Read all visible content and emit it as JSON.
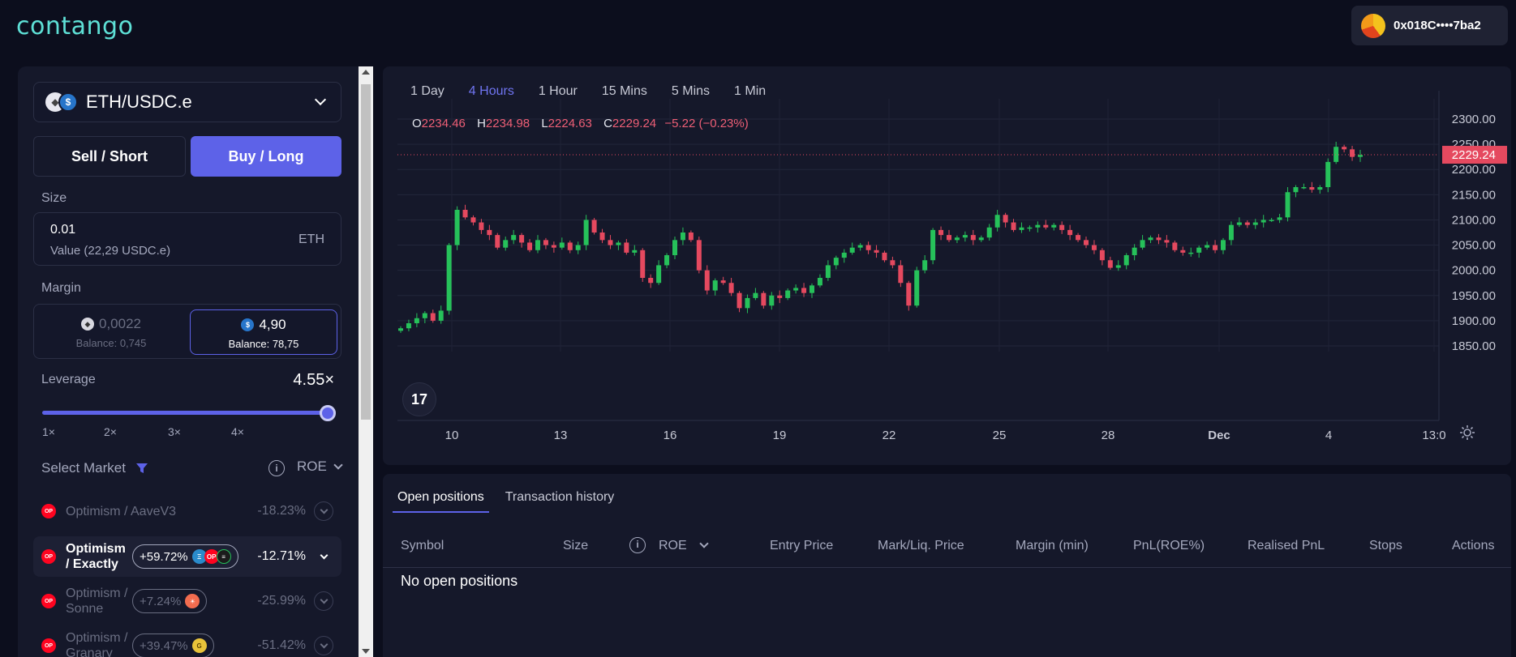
{
  "brand": {
    "logo_text": "contango"
  },
  "wallet": {
    "address": "0x018C••••7ba2"
  },
  "trade": {
    "pair": "ETH/USDC.e",
    "sell_label": "Sell / Short",
    "buy_label": "Buy / Long",
    "size_label": "Size",
    "size_value": "0.01",
    "size_value_sub": "Value (22,29 USDC.e)",
    "size_unit": "ETH",
    "margin_label": "Margin",
    "margin_eth": {
      "amount": "0,0022",
      "balance": "Balance: 0,745"
    },
    "margin_usdc": {
      "amount": "4,90",
      "balance": "Balance: 78,75"
    },
    "leverage_label": "Leverage",
    "leverage_value": "4.55×",
    "leverage_fraction": 0.85,
    "leverage_ticks": [
      "1×",
      "2×",
      "3×",
      "4×"
    ],
    "select_market_label": "Select Market",
    "roe_label": "ROE",
    "markets": [
      {
        "name": "Optimism / AaveV3",
        "rate": "",
        "roe": "-18.23%",
        "selected": false
      },
      {
        "name": "Optimism / Exactly",
        "rate": "+59.72%",
        "roe": "-12.71%",
        "selected": true
      },
      {
        "name": "Optimism / Sonne",
        "rate": "+7.24%",
        "roe": "-25.99%",
        "selected": false
      },
      {
        "name": "Optimism / Granary",
        "rate": "+39.47%",
        "roe": "-51.42%",
        "selected": false
      }
    ]
  },
  "chart": {
    "timeframes": [
      "1 Day",
      "4 Hours",
      "1 Hour",
      "15 Mins",
      "5 Mins",
      "1 Min"
    ],
    "active_timeframe": "4 Hours",
    "ohlc": {
      "o": "2234.46",
      "h": "2234.98",
      "l": "2224.63",
      "c": "2229.24",
      "change": "−5.22 (−0.23%)"
    },
    "last_price_label": "2229.24",
    "tv_logo": "17"
  },
  "chart_data": {
    "type": "candlestick",
    "y_ticks": [
      "2300.00",
      "2250.00",
      "2200.00",
      "2150.00",
      "2100.00",
      "2050.00",
      "2000.00",
      "1950.00",
      "1900.00",
      "1850.00"
    ],
    "ylim": [
      1850,
      2300
    ],
    "x_ticks": [
      "10",
      "13",
      "16",
      "19",
      "22",
      "25",
      "28",
      "Dec",
      "4",
      "13:0"
    ],
    "last_price": 2229.24,
    "colors": {
      "up": "#26c15a",
      "down": "#e5495f"
    },
    "closes": [
      1885,
      1895,
      1905,
      1915,
      1900,
      1920,
      2050,
      2120,
      2105,
      2095,
      2080,
      2070,
      2045,
      2060,
      2070,
      2055,
      2040,
      2060,
      2050,
      2045,
      2055,
      2040,
      2050,
      2100,
      2075,
      2060,
      2050,
      2055,
      2035,
      2040,
      1985,
      1975,
      2010,
      2030,
      2060,
      2075,
      2060,
      2000,
      1960,
      1980,
      1975,
      1955,
      1925,
      1945,
      1955,
      1930,
      1950,
      1945,
      1960,
      1965,
      1955,
      1970,
      1985,
      2010,
      2025,
      2035,
      2045,
      2050,
      2040,
      2035,
      2020,
      2010,
      1975,
      1930,
      2000,
      2020,
      2080,
      2070,
      2060,
      2065,
      2070,
      2060,
      2065,
      2085,
      2110,
      2095,
      2080,
      2085,
      2085,
      2090,
      2085,
      2090,
      2080,
      2070,
      2060,
      2050,
      2040,
      2020,
      2005,
      2010,
      2030,
      2045,
      2060,
      2065,
      2060,
      2055,
      2040,
      2035,
      2035,
      2045,
      2050,
      2040,
      2060,
      2090,
      2095,
      2090,
      2095,
      2100,
      2100,
      2105,
      2155,
      2165,
      2165,
      2160,
      2165,
      2215,
      2245,
      2240,
      2225,
      2229
    ]
  },
  "positions": {
    "tabs": [
      "Open positions",
      "Transaction history"
    ],
    "columns": [
      "Symbol",
      "Size",
      "ROE",
      "Entry Price",
      "Mark/Liq. Price",
      "Margin (min)",
      "PnL(ROE%)",
      "Realised PnL",
      "Stops",
      "Actions"
    ],
    "empty_text": "No open positions"
  }
}
